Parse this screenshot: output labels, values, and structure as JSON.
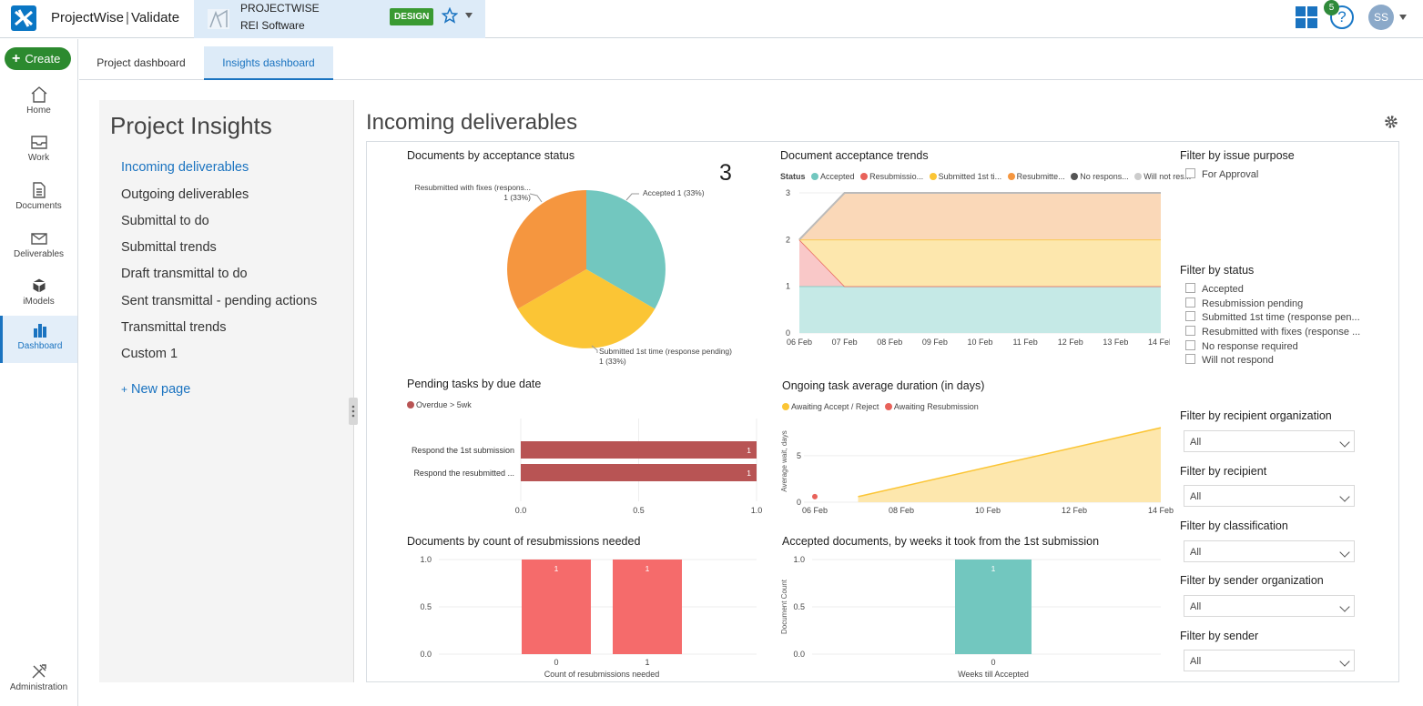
{
  "app": {
    "product": "ProjectWise",
    "module": "Validate"
  },
  "project": {
    "name": "PROJECTWISE",
    "org": "REI Software",
    "badge": "DESIGN"
  },
  "topright": {
    "notifications": "5",
    "avatar": "SS"
  },
  "nav": {
    "create_label": "Create",
    "items": [
      "Home",
      "Work",
      "Documents",
      "Deliverables",
      "iModels",
      "Dashboard"
    ],
    "admin_label": "Administration"
  },
  "tabs": [
    "Project dashboard",
    "Insights dashboard"
  ],
  "sidebar": {
    "title": "Project Insights",
    "items": [
      "Incoming deliverables",
      "Outgoing deliverables",
      "Submittal to do",
      "Submittal trends",
      "Draft transmittal to do",
      "Sent transmittal - pending actions",
      "Transmittal trends",
      "Custom 1"
    ],
    "new_page": "New page"
  },
  "main": {
    "title": "Incoming deliverables"
  },
  "colors": {
    "teal": "#72c7bf",
    "yellow": "#fbc535",
    "orange": "#f5963f",
    "red": "#e8625a",
    "darkred": "#b85454",
    "salmon": "#f56b6b",
    "accent": "#1a73c0"
  },
  "chart_data": [
    {
      "type": "pie",
      "title": "Documents by acceptance status",
      "total": "3",
      "categories": [
        "Accepted",
        "Submitted 1st time (response pending)",
        "Resubmitted with fixes (respons..."
      ],
      "values": [
        1,
        1,
        1
      ],
      "labels": [
        "Accepted 1 (33%)",
        "Submitted 1st time (response pending)",
        "1 (33%)",
        "Resubmitted with fixes (respons...",
        "1 (33%)"
      ]
    },
    {
      "type": "area",
      "title": "Document acceptance trends",
      "legend_title": "Status",
      "legend": [
        "Accepted",
        "Resubmissio...",
        "Submitted 1st ti...",
        "Resubmitte...",
        "No respons...",
        "Will not res..."
      ],
      "x": [
        "06 Feb",
        "07 Feb",
        "08 Feb",
        "09 Feb",
        "10 Feb",
        "11 Feb",
        "12 Feb",
        "13 Feb",
        "14 Feb"
      ],
      "yticks": [
        "0",
        "1",
        "2",
        "3"
      ],
      "ylim": [
        0,
        3
      ],
      "series": [
        {
          "name": "Accepted",
          "values": [
            1,
            1,
            1,
            1,
            1,
            1,
            1,
            1,
            1
          ]
        },
        {
          "name": "Resubmissio...",
          "values": [
            1,
            0,
            0,
            0,
            0,
            0,
            0,
            0,
            0
          ]
        },
        {
          "name": "Submitted 1st ti...",
          "values": [
            0,
            1,
            1,
            1,
            1,
            1,
            1,
            1,
            1
          ]
        },
        {
          "name": "Resubmitte...",
          "values": [
            0,
            1,
            1,
            1,
            1,
            1,
            1,
            1,
            1
          ]
        }
      ]
    },
    {
      "type": "bar",
      "orientation": "horizontal",
      "title": "Pending tasks by due date",
      "legend": [
        "Overdue > 5wk"
      ],
      "categories": [
        "Respond the 1st submission",
        "Respond the resubmitted ..."
      ],
      "values": [
        1,
        1
      ],
      "xticks": [
        "0.0",
        "0.5",
        "1.0"
      ],
      "xlim": [
        0,
        1
      ]
    },
    {
      "type": "area",
      "title": "Ongoing task average duration (in days)",
      "legend": [
        "Awaiting Accept / Reject",
        "Awaiting Resubmission"
      ],
      "ylabel": "Average wait, days",
      "x": [
        "06 Feb",
        "08 Feb",
        "10 Feb",
        "12 Feb",
        "14 Feb"
      ],
      "yticks": [
        "0",
        "5"
      ],
      "series": [
        {
          "name": "Awaiting Accept / Reject",
          "x": [
            "07 Feb",
            "14 Feb"
          ],
          "values": [
            0.6,
            8
          ]
        },
        {
          "name": "Awaiting Resubmission",
          "x": [
            "06 Feb"
          ],
          "values": [
            0.6
          ]
        }
      ]
    },
    {
      "type": "bar",
      "title": "Documents by count of resubmissions needed",
      "xlabel": "Count of resubmissions needed",
      "categories": [
        "0",
        "1"
      ],
      "values": [
        1,
        1
      ],
      "data_labels": [
        "1",
        "1"
      ],
      "yticks": [
        "0.0",
        "0.5",
        "1.0"
      ],
      "ylim": [
        0,
        1
      ]
    },
    {
      "type": "bar",
      "title": "Accepted documents, by weeks it took from the 1st submission",
      "xlabel": "Weeks till Accepted",
      "ylabel": "Document Count",
      "categories": [
        "0"
      ],
      "values": [
        1
      ],
      "data_labels": [
        "1"
      ],
      "yticks": [
        "0.0",
        "0.5",
        "1.0"
      ],
      "ylim": [
        0,
        1
      ]
    }
  ],
  "filters": {
    "issue_purpose": {
      "title": "Filter by issue purpose",
      "options": [
        "For Approval"
      ]
    },
    "status": {
      "title": "Filter by status",
      "options": [
        "Accepted",
        "Resubmission pending",
        "Submitted 1st time (response pen...",
        "Resubmitted with fixes (response ...",
        "No response required",
        "Will not respond"
      ]
    },
    "recipient_org": {
      "title": "Filter by recipient organization",
      "value": "All"
    },
    "recipient": {
      "title": "Filter by recipient",
      "value": "All"
    },
    "classification": {
      "title": "Filter by classification",
      "value": "All"
    },
    "sender_org": {
      "title": "Filter by sender organization",
      "value": "All"
    },
    "sender": {
      "title": "Filter by sender",
      "value": "All"
    }
  }
}
